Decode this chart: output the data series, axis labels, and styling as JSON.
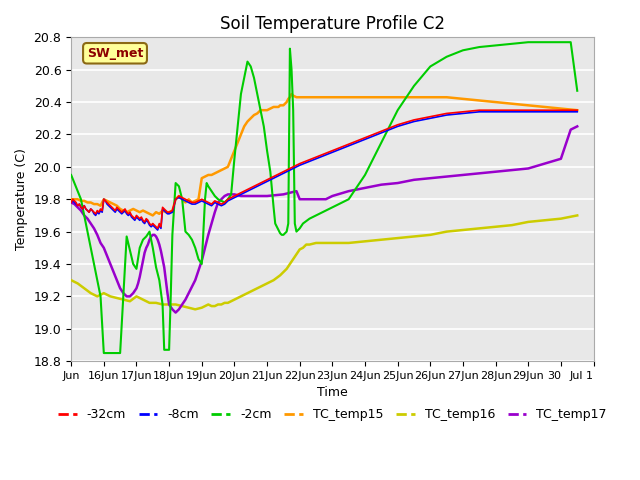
{
  "title": "Soil Temperature Profile C2",
  "xlabel": "Time",
  "ylabel": "Temperature (C)",
  "ylim": [
    18.8,
    20.8
  ],
  "background_color": "#e8e8e8",
  "annotation_text": "SW_met",
  "annotation_bg": "#ffff99",
  "annotation_border": "#8B6914",
  "annotation_text_color": "#8B0000",
  "series": {
    "-32cm": {
      "color": "#ff0000",
      "x": [
        15.0,
        15.05,
        15.1,
        15.15,
        15.2,
        15.25,
        15.3,
        15.35,
        15.4,
        15.45,
        15.5,
        15.55,
        15.6,
        15.65,
        15.7,
        15.75,
        15.8,
        15.85,
        15.9,
        15.95,
        16.0,
        16.05,
        16.1,
        16.15,
        16.2,
        16.25,
        16.3,
        16.35,
        16.4,
        16.45,
        16.5,
        16.55,
        16.6,
        16.65,
        16.7,
        16.75,
        16.8,
        16.85,
        16.9,
        16.95,
        17.0,
        17.05,
        17.1,
        17.15,
        17.2,
        17.25,
        17.3,
        17.35,
        17.4,
        17.45,
        17.5,
        17.55,
        17.6,
        17.65,
        17.7,
        17.75,
        17.8,
        17.85,
        17.9,
        17.95,
        18.0,
        18.1,
        18.2,
        18.3,
        18.4,
        18.5,
        18.6,
        18.7,
        18.8,
        18.9,
        19.0,
        19.1,
        19.2,
        19.3,
        19.4,
        19.5,
        19.6,
        19.7,
        19.8,
        19.9,
        20.0,
        20.2,
        20.4,
        20.6,
        20.8,
        21.0,
        21.2,
        21.4,
        21.6,
        21.8,
        22.0,
        22.5,
        23.0,
        23.5,
        24.0,
        24.5,
        25.0,
        25.5,
        26.0,
        26.5,
        27.0,
        27.5,
        28.0,
        28.5,
        29.0,
        29.5,
        30.0,
        30.5
      ],
      "y": [
        19.78,
        19.8,
        19.79,
        19.78,
        19.76,
        19.77,
        19.75,
        19.74,
        19.76,
        19.74,
        19.73,
        19.72,
        19.74,
        19.73,
        19.72,
        19.71,
        19.73,
        19.72,
        19.74,
        19.73,
        19.8,
        19.79,
        19.78,
        19.77,
        19.76,
        19.75,
        19.74,
        19.73,
        19.75,
        19.74,
        19.73,
        19.72,
        19.73,
        19.74,
        19.72,
        19.71,
        19.72,
        19.7,
        19.69,
        19.68,
        19.7,
        19.69,
        19.68,
        19.69,
        19.67,
        19.66,
        19.68,
        19.67,
        19.65,
        19.64,
        19.65,
        19.64,
        19.63,
        19.62,
        19.65,
        19.63,
        19.75,
        19.74,
        19.73,
        19.72,
        19.72,
        19.73,
        19.8,
        19.82,
        19.81,
        19.8,
        19.79,
        19.78,
        19.78,
        19.79,
        19.8,
        19.79,
        19.78,
        19.77,
        19.79,
        19.78,
        19.77,
        19.78,
        19.8,
        19.81,
        19.82,
        19.84,
        19.86,
        19.88,
        19.9,
        19.92,
        19.94,
        19.96,
        19.98,
        20.0,
        20.02,
        20.06,
        20.1,
        20.14,
        20.18,
        20.22,
        20.26,
        20.29,
        20.31,
        20.33,
        20.34,
        20.35,
        20.35,
        20.35,
        20.35,
        20.35,
        20.35,
        20.35
      ]
    },
    "-8cm": {
      "color": "#0000ff",
      "x": [
        15.0,
        15.05,
        15.1,
        15.15,
        15.2,
        15.25,
        15.3,
        15.35,
        15.4,
        15.45,
        15.5,
        15.55,
        15.6,
        15.65,
        15.7,
        15.75,
        15.8,
        15.85,
        15.9,
        15.95,
        16.0,
        16.05,
        16.1,
        16.15,
        16.2,
        16.25,
        16.3,
        16.35,
        16.4,
        16.45,
        16.5,
        16.55,
        16.6,
        16.65,
        16.7,
        16.75,
        16.8,
        16.85,
        16.9,
        16.95,
        17.0,
        17.05,
        17.1,
        17.15,
        17.2,
        17.25,
        17.3,
        17.35,
        17.4,
        17.45,
        17.5,
        17.55,
        17.6,
        17.65,
        17.7,
        17.75,
        17.8,
        17.85,
        17.9,
        17.95,
        18.0,
        18.1,
        18.2,
        18.3,
        18.4,
        18.5,
        18.6,
        18.7,
        18.8,
        18.9,
        19.0,
        19.1,
        19.2,
        19.3,
        19.4,
        19.5,
        19.6,
        19.7,
        19.8,
        19.9,
        20.0,
        20.2,
        20.4,
        20.6,
        20.8,
        21.0,
        21.2,
        21.4,
        21.6,
        21.8,
        22.0,
        22.5,
        23.0,
        23.5,
        24.0,
        24.5,
        25.0,
        25.5,
        26.0,
        26.5,
        27.0,
        27.5,
        28.0,
        28.5,
        29.0,
        29.5,
        30.0,
        30.5
      ],
      "y": [
        19.78,
        19.79,
        19.78,
        19.77,
        19.76,
        19.77,
        19.75,
        19.74,
        19.76,
        19.74,
        19.73,
        19.72,
        19.74,
        19.73,
        19.71,
        19.7,
        19.72,
        19.71,
        19.73,
        19.72,
        19.8,
        19.79,
        19.77,
        19.76,
        19.75,
        19.74,
        19.73,
        19.72,
        19.74,
        19.73,
        19.72,
        19.71,
        19.72,
        19.73,
        19.71,
        19.7,
        19.71,
        19.69,
        19.68,
        19.67,
        19.69,
        19.68,
        19.67,
        19.68,
        19.66,
        19.65,
        19.67,
        19.66,
        19.64,
        19.63,
        19.64,
        19.63,
        19.62,
        19.61,
        19.64,
        19.62,
        19.74,
        19.73,
        19.72,
        19.71,
        19.71,
        19.72,
        19.8,
        19.81,
        19.8,
        19.79,
        19.78,
        19.77,
        19.77,
        19.78,
        19.79,
        19.78,
        19.77,
        19.76,
        19.78,
        19.77,
        19.76,
        19.77,
        19.79,
        19.8,
        19.81,
        19.83,
        19.85,
        19.87,
        19.89,
        19.91,
        19.93,
        19.95,
        19.97,
        19.99,
        20.01,
        20.05,
        20.09,
        20.13,
        20.17,
        20.21,
        20.25,
        20.28,
        20.3,
        20.32,
        20.33,
        20.34,
        20.34,
        20.34,
        20.34,
        20.34,
        20.34,
        20.34
      ]
    },
    "-2cm": {
      "color": "#00cc00",
      "x": [
        15.0,
        15.1,
        15.3,
        15.5,
        15.7,
        15.9,
        16.0,
        16.2,
        16.4,
        16.5,
        16.7,
        16.9,
        17.0,
        17.1,
        17.2,
        17.3,
        17.4,
        17.5,
        17.6,
        17.7,
        17.8,
        17.85,
        17.9,
        18.0,
        18.05,
        18.1,
        18.2,
        18.3,
        18.4,
        18.45,
        18.5,
        18.6,
        18.7,
        18.8,
        18.9,
        19.0,
        19.05,
        19.1,
        19.15,
        19.2,
        19.3,
        19.4,
        19.5,
        19.6,
        19.7,
        19.8,
        19.9,
        20.0,
        20.1,
        20.2,
        20.3,
        20.4,
        20.5,
        20.6,
        20.7,
        20.8,
        20.9,
        21.0,
        21.1,
        21.2,
        21.25,
        21.3,
        21.35,
        21.4,
        21.45,
        21.5,
        21.55,
        21.6,
        21.65,
        21.7,
        21.75,
        21.8,
        21.85,
        21.9,
        22.0,
        22.1,
        22.3,
        22.5,
        22.7,
        23.0,
        23.5,
        24.0,
        24.5,
        25.0,
        25.5,
        26.0,
        26.5,
        27.0,
        27.5,
        28.0,
        28.5,
        29.0,
        29.5,
        30.0,
        30.3,
        30.5
      ],
      "y": [
        19.95,
        19.9,
        19.8,
        19.6,
        19.4,
        19.2,
        18.85,
        18.85,
        18.85,
        18.85,
        19.57,
        19.4,
        19.37,
        19.5,
        19.55,
        19.57,
        19.6,
        19.5,
        19.38,
        19.3,
        19.15,
        18.87,
        18.87,
        18.87,
        19.2,
        19.58,
        19.9,
        19.88,
        19.8,
        19.7,
        19.6,
        19.58,
        19.55,
        19.5,
        19.43,
        19.4,
        19.6,
        19.8,
        19.9,
        19.88,
        19.85,
        19.82,
        19.8,
        19.79,
        19.78,
        19.8,
        19.83,
        20.05,
        20.25,
        20.45,
        20.55,
        20.65,
        20.62,
        20.55,
        20.45,
        20.35,
        20.25,
        20.1,
        19.97,
        19.75,
        19.65,
        19.63,
        19.61,
        19.59,
        19.58,
        19.58,
        19.59,
        19.6,
        19.65,
        20.73,
        20.6,
        20.35,
        19.65,
        19.6,
        19.62,
        19.65,
        19.68,
        19.7,
        19.72,
        19.75,
        19.8,
        19.95,
        20.15,
        20.35,
        20.5,
        20.62,
        20.68,
        20.72,
        20.74,
        20.75,
        20.76,
        20.77,
        20.77,
        20.77,
        20.77,
        20.47
      ]
    },
    "TC_temp15": {
      "color": "#ff9900",
      "x": [
        15.0,
        15.1,
        15.2,
        15.3,
        15.4,
        15.5,
        15.6,
        15.7,
        15.8,
        15.9,
        16.0,
        16.1,
        16.2,
        16.3,
        16.4,
        16.5,
        16.6,
        16.7,
        16.8,
        16.9,
        17.0,
        17.1,
        17.2,
        17.3,
        17.4,
        17.5,
        17.6,
        17.7,
        17.8,
        17.9,
        18.0,
        18.1,
        18.2,
        18.3,
        18.4,
        18.5,
        18.6,
        18.7,
        18.8,
        18.9,
        19.0,
        19.1,
        19.2,
        19.3,
        19.4,
        19.5,
        19.6,
        19.7,
        19.8,
        19.9,
        20.0,
        20.1,
        20.2,
        20.3,
        20.4,
        20.5,
        20.6,
        20.7,
        20.8,
        20.9,
        21.0,
        21.1,
        21.2,
        21.3,
        21.35,
        21.4,
        21.45,
        21.5,
        21.55,
        21.6,
        21.65,
        21.7,
        21.75,
        21.8,
        21.9,
        22.0,
        22.5,
        23.0,
        23.5,
        24.0,
        24.5,
        25.0,
        25.5,
        26.0,
        26.5,
        27.0,
        27.5,
        28.0,
        28.5,
        29.0,
        29.5,
        30.0,
        30.5
      ],
      "y": [
        19.8,
        19.8,
        19.8,
        19.79,
        19.79,
        19.78,
        19.78,
        19.77,
        19.77,
        19.76,
        19.8,
        19.79,
        19.78,
        19.77,
        19.76,
        19.74,
        19.73,
        19.72,
        19.73,
        19.74,
        19.73,
        19.72,
        19.73,
        19.72,
        19.71,
        19.7,
        19.72,
        19.71,
        19.73,
        19.72,
        19.72,
        19.73,
        19.8,
        19.82,
        19.8,
        19.78,
        19.8,
        19.78,
        19.79,
        19.8,
        19.93,
        19.94,
        19.95,
        19.95,
        19.96,
        19.97,
        19.98,
        19.99,
        20.0,
        20.05,
        20.1,
        20.15,
        20.2,
        20.25,
        20.28,
        20.3,
        20.32,
        20.33,
        20.35,
        20.35,
        20.35,
        20.36,
        20.37,
        20.37,
        20.37,
        20.38,
        20.38,
        20.38,
        20.39,
        20.4,
        20.42,
        20.43,
        20.45,
        20.44,
        20.43,
        20.43,
        20.43,
        20.43,
        20.43,
        20.43,
        20.43,
        20.43,
        20.43,
        20.43,
        20.43,
        20.42,
        20.41,
        20.4,
        20.39,
        20.38,
        20.37,
        20.36,
        20.35
      ]
    },
    "TC_temp16": {
      "color": "#cccc00",
      "x": [
        15.0,
        15.2,
        15.4,
        15.6,
        15.8,
        16.0,
        16.2,
        16.4,
        16.6,
        16.8,
        17.0,
        17.2,
        17.4,
        17.6,
        17.8,
        18.0,
        18.2,
        18.4,
        18.6,
        18.8,
        19.0,
        19.1,
        19.2,
        19.3,
        19.4,
        19.5,
        19.6,
        19.7,
        19.8,
        19.9,
        20.0,
        20.2,
        20.4,
        20.6,
        20.8,
        21.0,
        21.2,
        21.4,
        21.6,
        21.8,
        22.0,
        22.1,
        22.2,
        22.3,
        22.5,
        23.0,
        23.5,
        24.0,
        24.5,
        25.0,
        25.5,
        26.0,
        26.5,
        27.0,
        27.5,
        28.0,
        28.5,
        29.0,
        29.5,
        30.0,
        30.5
      ],
      "y": [
        19.3,
        19.28,
        19.25,
        19.22,
        19.2,
        19.22,
        19.2,
        19.19,
        19.18,
        19.17,
        19.2,
        19.18,
        19.16,
        19.16,
        19.15,
        19.15,
        19.15,
        19.14,
        19.13,
        19.12,
        19.13,
        19.14,
        19.15,
        19.14,
        19.14,
        19.15,
        19.15,
        19.16,
        19.16,
        19.17,
        19.18,
        19.2,
        19.22,
        19.24,
        19.26,
        19.28,
        19.3,
        19.33,
        19.37,
        19.43,
        19.49,
        19.5,
        19.52,
        19.52,
        19.53,
        19.53,
        19.53,
        19.54,
        19.55,
        19.56,
        19.57,
        19.58,
        19.6,
        19.61,
        19.62,
        19.63,
        19.64,
        19.66,
        19.67,
        19.68,
        19.7
      ]
    },
    "TC_temp17": {
      "color": "#9900cc",
      "x": [
        15.0,
        15.1,
        15.2,
        15.3,
        15.4,
        15.5,
        15.6,
        15.7,
        15.8,
        15.9,
        16.0,
        16.1,
        16.2,
        16.3,
        16.4,
        16.5,
        16.6,
        16.7,
        16.8,
        16.9,
        17.0,
        17.05,
        17.1,
        17.15,
        17.2,
        17.25,
        17.3,
        17.35,
        17.4,
        17.45,
        17.5,
        17.55,
        17.6,
        17.65,
        17.7,
        17.75,
        17.8,
        17.85,
        17.9,
        17.95,
        18.0,
        18.1,
        18.2,
        18.3,
        18.4,
        18.5,
        18.6,
        18.7,
        18.8,
        18.9,
        19.0,
        19.1,
        19.2,
        19.3,
        19.4,
        19.5,
        19.6,
        19.7,
        19.8,
        19.9,
        20.0,
        20.2,
        20.5,
        21.0,
        21.5,
        21.7,
        21.9,
        22.0,
        22.2,
        22.4,
        22.6,
        22.8,
        23.0,
        23.5,
        24.0,
        24.5,
        25.0,
        25.5,
        26.0,
        26.5,
        27.0,
        27.5,
        28.0,
        28.5,
        29.0,
        29.5,
        30.0,
        30.3,
        30.5
      ],
      "y": [
        19.78,
        19.77,
        19.75,
        19.73,
        19.7,
        19.68,
        19.65,
        19.62,
        19.58,
        19.53,
        19.5,
        19.45,
        19.4,
        19.35,
        19.3,
        19.25,
        19.22,
        19.2,
        19.2,
        19.22,
        19.25,
        19.28,
        19.32,
        19.37,
        19.42,
        19.47,
        19.5,
        19.52,
        19.55,
        19.57,
        19.58,
        19.58,
        19.57,
        19.55,
        19.52,
        19.48,
        19.43,
        19.38,
        19.3,
        19.22,
        19.15,
        19.12,
        19.1,
        19.12,
        19.15,
        19.18,
        19.22,
        19.26,
        19.3,
        19.36,
        19.42,
        19.5,
        19.58,
        19.65,
        19.72,
        19.78,
        19.8,
        19.82,
        19.83,
        19.83,
        19.83,
        19.82,
        19.82,
        19.82,
        19.83,
        19.84,
        19.85,
        19.8,
        19.8,
        19.8,
        19.8,
        19.8,
        19.82,
        19.85,
        19.87,
        19.89,
        19.9,
        19.92,
        19.93,
        19.94,
        19.95,
        19.96,
        19.97,
        19.98,
        19.99,
        20.02,
        20.05,
        20.23,
        20.25
      ]
    }
  },
  "xtick_labels": [
    "Jun",
    "16Jun",
    "17Jun",
    "18Jun",
    "19Jun",
    "20Jun",
    "21Jun",
    "22Jun",
    "23Jun",
    "24Jun",
    "25Jun",
    "26Jun",
    "27Jun",
    "28Jun",
    "29Jun",
    "30",
    "Jul 1"
  ],
  "xtick_positions": [
    15,
    16,
    17,
    18,
    19,
    20,
    21,
    22,
    23,
    24,
    25,
    26,
    27,
    28,
    29,
    30,
    31
  ],
  "ytick_positions": [
    18.8,
    19.0,
    19.2,
    19.4,
    19.6,
    19.8,
    20.0,
    20.2,
    20.4,
    20.6,
    20.8
  ],
  "legend_entries": [
    "-32cm",
    "-8cm",
    "-2cm",
    "TC_temp15",
    "TC_temp16",
    "TC_temp17"
  ],
  "legend_colors": [
    "#ff0000",
    "#0000ff",
    "#00cc00",
    "#ff9900",
    "#cccc00",
    "#9900cc"
  ]
}
